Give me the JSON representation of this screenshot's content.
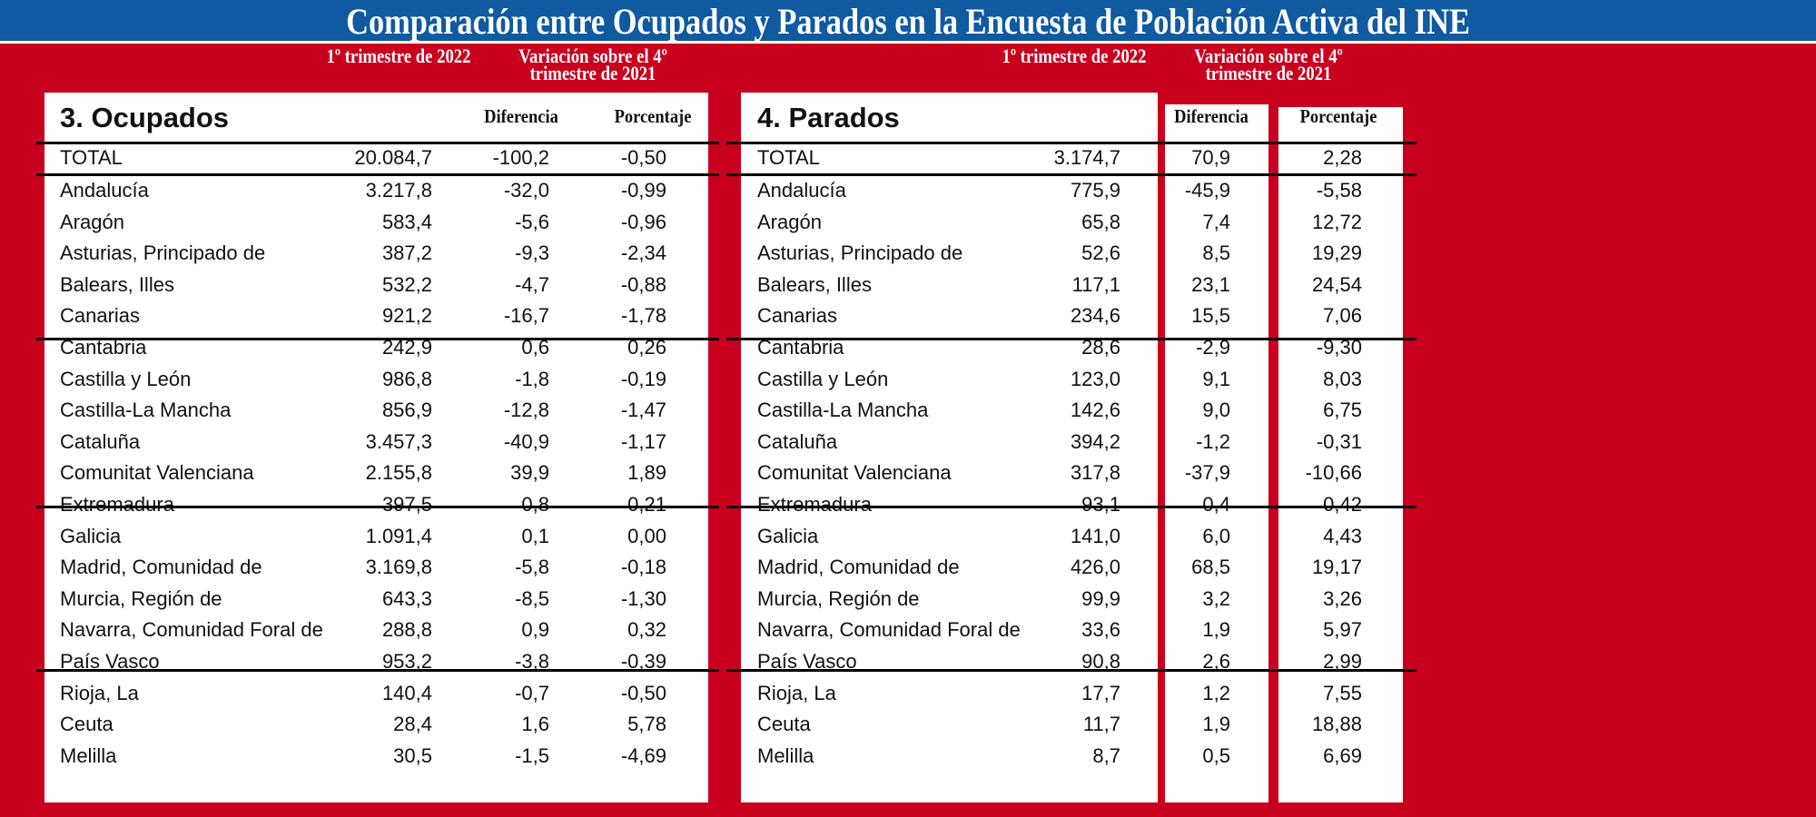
{
  "title": "Comparación entre Ocupados y Parados en  la Encuesta de Población Activa del INE",
  "header": {
    "period": "1º trimestre de 2022",
    "variation": "Variación sobre el 4º trimestre de 2021",
    "diff": "Diferencia",
    "pct": "Porcentaje"
  },
  "colors": {
    "background": "#c8001e",
    "title_bar": "#0f5aa0"
  },
  "ocupados": {
    "title": "3. Ocupados",
    "rows": [
      [
        "TOTAL",
        "20.084,7",
        "-100,2",
        "-0,50"
      ],
      [
        "Andalucía",
        "3.217,8",
        "-32,0",
        "-0,99"
      ],
      [
        "Aragón",
        "583,4",
        "-5,6",
        "-0,96"
      ],
      [
        "Asturias, Principado de",
        "387,2",
        "-9,3",
        "-2,34"
      ],
      [
        "Balears, Illes",
        "532,2",
        "-4,7",
        "-0,88"
      ],
      [
        "Canarias",
        "921,2",
        "-16,7",
        "-1,78"
      ],
      [
        "Cantabria",
        "242,9",
        "0,6",
        "0,26"
      ],
      [
        "Castilla y León",
        "986,8",
        "-1,8",
        "-0,19"
      ],
      [
        "Castilla-La Mancha",
        "856,9",
        "-12,8",
        "-1,47"
      ],
      [
        "Cataluña",
        "3.457,3",
        "-40,9",
        "-1,17"
      ],
      [
        "Comunitat Valenciana",
        "2.155,8",
        "39,9",
        "1,89"
      ],
      [
        "Extremadura",
        "397,5",
        "0,8",
        "0,21"
      ],
      [
        "Galicia",
        "1.091,4",
        "0,1",
        "0,00"
      ],
      [
        "Madrid, Comunidad de",
        "3.169,8",
        "-5,8",
        "-0,18"
      ],
      [
        "Murcia, Región de",
        "643,3",
        "-8,5",
        "-1,30"
      ],
      [
        "Navarra, Comunidad Foral de",
        "288,8",
        "0,9",
        "0,32"
      ],
      [
        "País Vasco",
        "953,2",
        "-3,8",
        "-0,39"
      ],
      [
        "Rioja, La",
        "140,4",
        "-0,7",
        "-0,50"
      ],
      [
        "Ceuta",
        "28,4",
        "1,6",
        "5,78"
      ],
      [
        "Melilla",
        "30,5",
        "-1,5",
        "-4,69"
      ]
    ]
  },
  "parados": {
    "title": "4. Parados",
    "rows": [
      [
        "TOTAL",
        "3.174,7",
        "70,9",
        "2,28"
      ],
      [
        "Andalucía",
        "775,9",
        "-45,9",
        "-5,58"
      ],
      [
        "Aragón",
        "65,8",
        "7,4",
        "12,72"
      ],
      [
        "Asturias, Principado de",
        "52,6",
        "8,5",
        "19,29"
      ],
      [
        "Balears, Illes",
        "117,1",
        "23,1",
        "24,54"
      ],
      [
        "Canarias",
        "234,6",
        "15,5",
        "7,06"
      ],
      [
        "Cantabria",
        "28,6",
        "-2,9",
        "-9,30"
      ],
      [
        "Castilla y León",
        "123,0",
        "9,1",
        "8,03"
      ],
      [
        "Castilla-La Mancha",
        "142,6",
        "9,0",
        "6,75"
      ],
      [
        "Cataluña",
        "394,2",
        "-1,2",
        "-0,31"
      ],
      [
        "Comunitat Valenciana",
        "317,8",
        "-37,9",
        "-10,66"
      ],
      [
        "Extremadura",
        "93,1",
        "0,4",
        "0,42"
      ],
      [
        "Galicia",
        "141,0",
        "6,0",
        "4,43"
      ],
      [
        "Madrid, Comunidad de",
        "426,0",
        "68,5",
        "19,17"
      ],
      [
        "Murcia, Región de",
        "99,9",
        "3,2",
        "3,26"
      ],
      [
        "Navarra, Comunidad Foral de",
        "33,6",
        "1,9",
        "5,97"
      ],
      [
        "País Vasco",
        "90,8",
        "2,6",
        "2,99"
      ],
      [
        "Rioja, La",
        "17,7",
        "1,2",
        "7,55"
      ],
      [
        "Ceuta",
        "11,7",
        "1,9",
        "18,88"
      ],
      [
        "Melilla",
        "8,7",
        "0,5",
        "6,69"
      ]
    ]
  }
}
